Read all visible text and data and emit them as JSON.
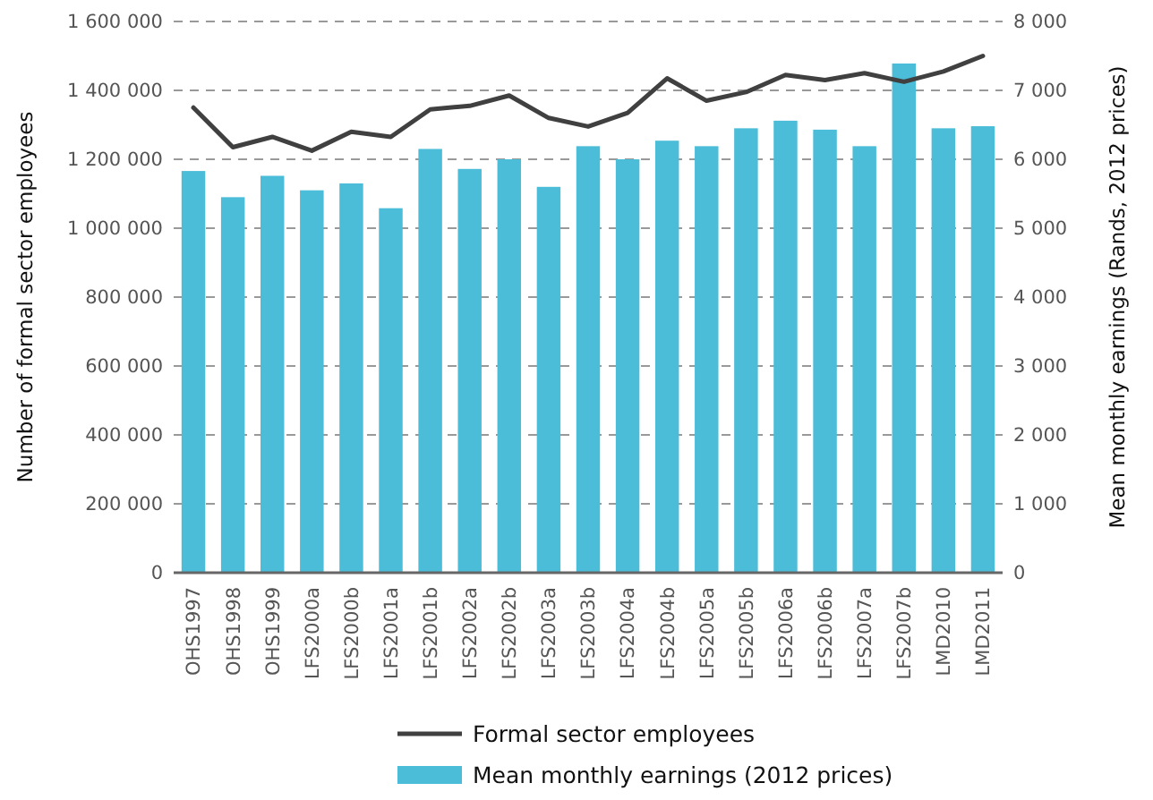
{
  "chart_data": {
    "type": "bar",
    "categories": [
      "OHS1997",
      "OHS1998",
      "OHS1999",
      "LFS2000a",
      "LFS2000b",
      "LFS2001a",
      "LFS2001b",
      "LFS2002a",
      "LFS2002b",
      "LFS2003a",
      "LFS2003b",
      "LFS2004a",
      "LFS2004b",
      "LFS2005a",
      "LFS2005b",
      "LFS2006a",
      "LFS2006b",
      "LFS2007a",
      "LFS2007b",
      "LMD2010",
      "LMD2011"
    ],
    "series": [
      {
        "name": "Formal sector employees",
        "type": "line",
        "color": "#404040",
        "values": [
          1350000,
          1235000,
          1265000,
          1225000,
          1280000,
          1265000,
          1345000,
          1355000,
          1385000,
          1320000,
          1295000,
          1335000,
          1435000,
          1370000,
          1395000,
          1445000,
          1430000,
          1450000,
          1425000,
          1455000,
          1500000
        ]
      },
      {
        "name": "Mean monthly earnings (2012 prices)",
        "axis": "y2",
        "color": "#4bbdd8",
        "values": [
          5830,
          5450,
          5760,
          5550,
          5650,
          5290,
          6150,
          5860,
          6000,
          5600,
          6190,
          6000,
          6270,
          6190,
          6450,
          6560,
          6430,
          6190,
          7390,
          6450,
          6480
        ]
      }
    ],
    "ylabel": "Number of formal sector employees",
    "y2label": "Mean monthly earnings (Rands, 2012 prices)",
    "ylim": [
      0,
      1600000
    ],
    "yticks": [
      {
        "value": 0,
        "label": "0"
      },
      {
        "value": 200000,
        "label": "200 000"
      },
      {
        "value": 400000,
        "label": "400 000"
      },
      {
        "value": 600000,
        "label": "600 000"
      },
      {
        "value": 800000,
        "label": "800 000"
      },
      {
        "value": 1000000,
        "label": "1 000 000"
      },
      {
        "value": 1200000,
        "label": "1 200 000"
      },
      {
        "value": 1400000,
        "label": "1 400 000"
      },
      {
        "value": 1600000,
        "label": "1 600 000"
      }
    ],
    "y2lim": [
      0,
      8000
    ],
    "y2ticks": [
      {
        "value": 0,
        "label": "0"
      },
      {
        "value": 1000,
        "label": "1 000"
      },
      {
        "value": 2000,
        "label": "2 000"
      },
      {
        "value": 3000,
        "label": "3 000"
      },
      {
        "value": 4000,
        "label": "4 000"
      },
      {
        "value": 5000,
        "label": "5 000"
      },
      {
        "value": 6000,
        "label": "6 000"
      },
      {
        "value": 7000,
        "label": "7 000"
      },
      {
        "value": 8000,
        "label": "8 000"
      }
    ],
    "grid": "y",
    "legend": "bottom"
  }
}
